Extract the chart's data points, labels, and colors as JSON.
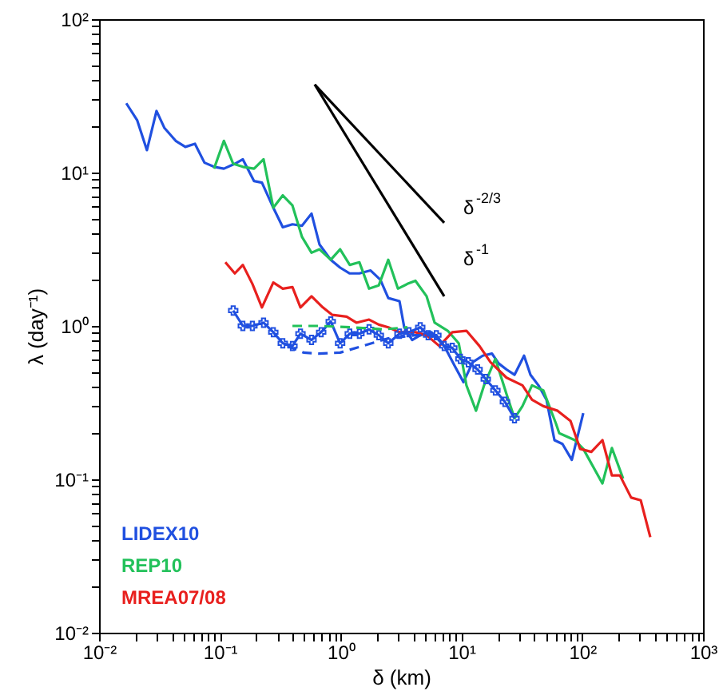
{
  "chart_data": {
    "type": "line",
    "xlabel": "δ (km)",
    "ylabel": "λ (day⁻¹)",
    "log": "xy",
    "grid": false,
    "legend": "bottom left",
    "xlim": [
      0.01,
      1000
    ],
    "ylim": [
      0.01,
      100
    ],
    "xticks": [
      {
        "value": 0.01,
        "label": "10⁻²"
      },
      {
        "value": 0.02,
        "label": null
      },
      {
        "value": 0.03,
        "label": null
      },
      {
        "value": 0.04,
        "label": null
      },
      {
        "value": 0.05,
        "label": null
      },
      {
        "value": 0.06,
        "label": null
      },
      {
        "value": 0.07,
        "label": null
      },
      {
        "value": 0.08,
        "label": null
      },
      {
        "value": 0.09,
        "label": null
      },
      {
        "value": 0.1,
        "label": "10⁻¹"
      },
      {
        "value": 0.2,
        "label": null
      },
      {
        "value": 0.3,
        "label": null
      },
      {
        "value": 0.4,
        "label": null
      },
      {
        "value": 0.5,
        "label": null
      },
      {
        "value": 0.6,
        "label": null
      },
      {
        "value": 0.7,
        "label": null
      },
      {
        "value": 0.8,
        "label": null
      },
      {
        "value": 0.9,
        "label": null
      },
      {
        "value": 1,
        "label": "10⁰"
      },
      {
        "value": 2,
        "label": null
      },
      {
        "value": 3,
        "label": null
      },
      {
        "value": 4,
        "label": null
      },
      {
        "value": 5,
        "label": null
      },
      {
        "value": 6,
        "label": null
      },
      {
        "value": 7,
        "label": null
      },
      {
        "value": 8,
        "label": null
      },
      {
        "value": 9,
        "label": null
      },
      {
        "value": 10,
        "label": "10¹"
      },
      {
        "value": 20,
        "label": null
      },
      {
        "value": 30,
        "label": null
      },
      {
        "value": 40,
        "label": null
      },
      {
        "value": 50,
        "label": null
      },
      {
        "value": 60,
        "label": null
      },
      {
        "value": 70,
        "label": null
      },
      {
        "value": 80,
        "label": null
      },
      {
        "value": 90,
        "label": null
      },
      {
        "value": 100,
        "label": "10²"
      },
      {
        "value": 200,
        "label": null
      },
      {
        "value": 300,
        "label": null
      },
      {
        "value": 400,
        "label": null
      },
      {
        "value": 500,
        "label": null
      },
      {
        "value": 600,
        "label": null
      },
      {
        "value": 700,
        "label": null
      },
      {
        "value": 800,
        "label": null
      },
      {
        "value": 900,
        "label": null
      },
      {
        "value": 1000,
        "label": "10³"
      }
    ],
    "yticks": [
      {
        "value": 0.01,
        "label": "10⁻²"
      },
      {
        "value": 0.02,
        "label": null
      },
      {
        "value": 0.03,
        "label": null
      },
      {
        "value": 0.04,
        "label": null
      },
      {
        "value": 0.05,
        "label": null
      },
      {
        "value": 0.06,
        "label": null
      },
      {
        "value": 0.07,
        "label": null
      },
      {
        "value": 0.08,
        "label": null
      },
      {
        "value": 0.09,
        "label": null
      },
      {
        "value": 0.1,
        "label": "10⁻¹"
      },
      {
        "value": 0.2,
        "label": null
      },
      {
        "value": 0.3,
        "label": null
      },
      {
        "value": 0.4,
        "label": null
      },
      {
        "value": 0.5,
        "label": null
      },
      {
        "value": 0.6,
        "label": null
      },
      {
        "value": 0.7,
        "label": null
      },
      {
        "value": 0.8,
        "label": null
      },
      {
        "value": 0.9,
        "label": null
      },
      {
        "value": 1,
        "label": "10⁰"
      },
      {
        "value": 2,
        "label": null
      },
      {
        "value": 3,
        "label": null
      },
      {
        "value": 4,
        "label": null
      },
      {
        "value": 5,
        "label": null
      },
      {
        "value": 6,
        "label": null
      },
      {
        "value": 7,
        "label": null
      },
      {
        "value": 8,
        "label": null
      },
      {
        "value": 9,
        "label": null
      },
      {
        "value": 10,
        "label": "10¹"
      },
      {
        "value": 20,
        "label": null
      },
      {
        "value": 30,
        "label": null
      },
      {
        "value": 40,
        "label": null
      },
      {
        "value": 50,
        "label": null
      },
      {
        "value": 60,
        "label": null
      },
      {
        "value": 70,
        "label": null
      },
      {
        "value": 80,
        "label": null
      },
      {
        "value": 90,
        "label": null
      },
      {
        "value": 100,
        "label": "10²"
      }
    ],
    "series": [
      {
        "name": "LIDEX10",
        "color": "#2050e0",
        "line_style": "solid",
        "marker": "none",
        "x": [
          0.0168,
          0.0207,
          0.0249,
          0.0299,
          0.0348,
          0.0431,
          0.0518,
          0.0622,
          0.0746,
          0.0895,
          0.108,
          0.133,
          0.155,
          0.192,
          0.223,
          0.277,
          0.332,
          0.399,
          0.479,
          0.574,
          0.668,
          0.828,
          0.99,
          1.19,
          1.43,
          1.77,
          2.13,
          2.48,
          3.07,
          3.36,
          3.91,
          4.56,
          5.64,
          7.2,
          8.9,
          10.4,
          12.4,
          15.0,
          17.9,
          20.3,
          23.6,
          27.5,
          33.0,
          37.3,
          43.4,
          50.6,
          58.9,
          68.6,
          82,
          102
        ],
        "values": [
          28.3,
          21.9,
          14.0,
          25.2,
          19.5,
          16.1,
          14.7,
          15.4,
          11.6,
          10.9,
          10.6,
          11.4,
          12.2,
          8.8,
          8.6,
          5.9,
          4.4,
          4.6,
          4.5,
          5.4,
          3.4,
          2.7,
          2.4,
          2.2,
          2.2,
          2.3,
          2.0,
          1.52,
          1.45,
          0.98,
          0.81,
          0.87,
          0.91,
          0.74,
          0.54,
          0.43,
          0.58,
          0.64,
          0.66,
          0.57,
          0.52,
          0.48,
          0.64,
          0.48,
          0.41,
          0.33,
          0.18,
          0.17,
          0.134,
          0.27
        ]
      },
      {
        "name": "REP10",
        "color": "#22c15a",
        "line_style": "solid",
        "marker": "none",
        "x": [
          0.0895,
          0.108,
          0.129,
          0.155,
          0.192,
          0.23,
          0.277,
          0.332,
          0.399,
          0.479,
          0.574,
          0.668,
          0.828,
          0.99,
          1.19,
          1.43,
          1.72,
          2.07,
          2.48,
          2.98,
          3.57,
          4.16,
          5.15,
          6.0,
          7.7,
          9.5,
          11.0,
          13.2,
          15.4,
          19.1,
          23.6,
          27.5,
          32.0,
          38.4,
          47.6,
          60.7,
          64.5,
          87,
          102,
          147,
          176,
          218
        ],
        "values": [
          10.6,
          16.1,
          11.4,
          10.9,
          10.6,
          12.2,
          5.9,
          7.1,
          6.1,
          3.8,
          3.0,
          3.16,
          2.7,
          3.16,
          2.5,
          2.6,
          1.75,
          1.84,
          2.7,
          1.75,
          1.88,
          1.97,
          1.56,
          1.05,
          0.93,
          0.77,
          0.41,
          0.28,
          0.41,
          0.61,
          0.36,
          0.25,
          0.3,
          0.41,
          0.38,
          0.23,
          0.2,
          0.18,
          0.158,
          0.094,
          0.16,
          0.101
        ]
      },
      {
        "name": "MREA07/08",
        "color": "#e8201e",
        "line_style": "solid",
        "marker": "none",
        "x": [
          0.111,
          0.133,
          0.155,
          0.186,
          0.223,
          0.277,
          0.332,
          0.399,
          0.465,
          0.574,
          0.712,
          0.853,
          1.12,
          1.35,
          1.72,
          2.07,
          2.48,
          3.07,
          4.16,
          5.15,
          6.56,
          8.4,
          11.0,
          14.1,
          17.4,
          23.6,
          32.0,
          38.4,
          47.6,
          62.5,
          80,
          96,
          119,
          147,
          176,
          205,
          254,
          305,
          366
        ],
        "values": [
          2.6,
          2.2,
          2.5,
          1.88,
          1.32,
          1.92,
          1.75,
          1.79,
          1.32,
          1.56,
          1.32,
          1.18,
          1.15,
          1.05,
          1.1,
          1.02,
          0.98,
          0.91,
          0.91,
          0.87,
          0.74,
          0.91,
          0.93,
          0.74,
          0.58,
          0.46,
          0.41,
          0.33,
          0.3,
          0.28,
          0.24,
          0.158,
          0.151,
          0.18,
          0.106,
          0.106,
          0.076,
          0.073,
          0.042
        ]
      },
      {
        "color": "#2050e0",
        "line_style": "solid",
        "marker": "cross",
        "x": [
          0.129,
          0.155,
          0.186,
          0.23,
          0.277,
          0.332,
          0.399,
          0.465,
          0.574,
          0.69,
          0.828,
          0.99,
          1.19,
          1.43,
          1.72,
          2.07,
          2.48,
          3.07,
          3.68,
          4.56,
          5.3,
          6.2,
          7.2,
          8.4,
          9.8,
          11.4,
          13.6,
          15.9,
          19.1,
          22.9,
          27.5
        ],
        "values": [
          1.26,
          1.0,
          1.0,
          1.05,
          0.91,
          0.77,
          0.74,
          0.89,
          0.81,
          0.91,
          1.07,
          0.77,
          0.89,
          0.89,
          0.95,
          0.87,
          0.77,
          0.89,
          0.91,
          0.98,
          0.87,
          0.87,
          0.74,
          0.72,
          0.61,
          0.58,
          0.52,
          0.45,
          0.38,
          0.32,
          0.25
        ]
      },
      {
        "color": "#2050e0",
        "line_style": "dashed",
        "marker": "none",
        "x": [
          0.363,
          0.493,
          0.668,
          0.99,
          1.52,
          2.48,
          4.16,
          6.56
        ],
        "values": [
          0.74,
          0.67,
          0.66,
          0.67,
          0.74,
          0.83,
          0.87,
          0.87
        ]
      },
      {
        "color": "#22c15a",
        "line_style": "dashed",
        "marker": "none",
        "x": [
          0.399,
          0.668,
          1.23,
          2.26,
          3.57
        ],
        "values": [
          1.0,
          1.0,
          0.98,
          0.95,
          0.98
        ]
      },
      {
        "color": "#000000",
        "line_style": "solid",
        "marker": "none",
        "x": [
          0.61,
          7.2
        ],
        "values": [
          37.5,
          4.7
        ]
      },
      {
        "color": "#000000",
        "line_style": "solid",
        "marker": "none",
        "x": [
          0.61,
          7.2
        ],
        "values": [
          37.5,
          1.56
        ]
      }
    ],
    "annotations": [
      "δ$^{-2/3}$",
      "δ$^{-1}$"
    ]
  }
}
